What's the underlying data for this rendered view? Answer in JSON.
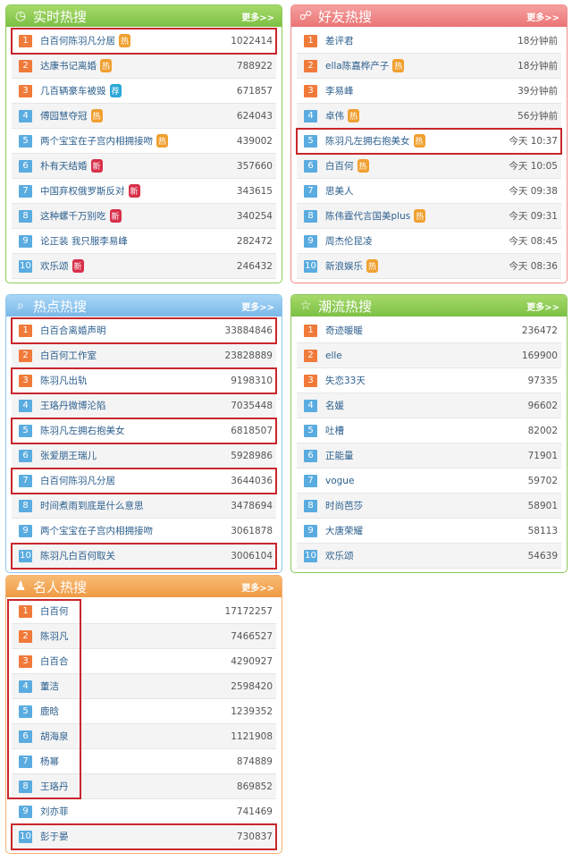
{
  "colors": {
    "hot": "#f0a030",
    "rec": "#2aa8d8",
    "new": "#d8304a",
    "highlight": "#c8262c"
  },
  "more_label": "更多>>",
  "panels": [
    {
      "id": "p1",
      "title": "实时热搜",
      "icon": "clock-icon",
      "theme": "green",
      "rows": [
        {
          "rank": "1",
          "name": "白百何陈羽凡分居",
          "tag": "热",
          "value": "1022414",
          "highlighted": true
        },
        {
          "rank": "2",
          "name": "达康书记离婚",
          "tag": "热",
          "value": "788922"
        },
        {
          "rank": "3",
          "name": "几百辆豪车被毁",
          "tag": "荐",
          "value": "671857"
        },
        {
          "rank": "4",
          "name": "傅园慧夺冠",
          "tag": "热",
          "value": "624043"
        },
        {
          "rank": "5",
          "name": "两个宝宝在子宫内相拥接吻",
          "tag": "热",
          "value": "439002"
        },
        {
          "rank": "6",
          "name": "朴有天结婚",
          "tag": "新",
          "value": "357660"
        },
        {
          "rank": "7",
          "name": "中国弃权俄罗斯反对",
          "tag": "新",
          "value": "343615"
        },
        {
          "rank": "8",
          "name": "这种螺千万别吃",
          "tag": "新",
          "value": "340254"
        },
        {
          "rank": "9",
          "name": "论正装 我只服李易峰",
          "value": "282472"
        },
        {
          "rank": "10",
          "name": "欢乐颂",
          "tag": "新",
          "value": "246432"
        }
      ]
    },
    {
      "id": "p2",
      "title": "好友热搜",
      "icon": "friends-icon",
      "theme": "pink",
      "rows": [
        {
          "rank": "1",
          "name": "差评君",
          "value": "18分钟前"
        },
        {
          "rank": "2",
          "name": "ella陈嘉桦产子",
          "tag": "热",
          "value": "18分钟前"
        },
        {
          "rank": "3",
          "name": "李易峰",
          "value": "39分钟前"
        },
        {
          "rank": "4",
          "name": "卓伟",
          "tag": "热",
          "value": "56分钟前"
        },
        {
          "rank": "5",
          "name": "陈羽凡左拥右抱美女",
          "tag": "热",
          "value": "今天 10:37",
          "highlighted": true
        },
        {
          "rank": "6",
          "name": "白百何",
          "tag": "热",
          "value": "今天 10:05"
        },
        {
          "rank": "7",
          "name": "思美人",
          "value": "今天 09:38"
        },
        {
          "rank": "8",
          "name": "陈伟霆代言国美plus",
          "tag": "热",
          "value": "今天 09:31"
        },
        {
          "rank": "9",
          "name": "周杰伦昆凌",
          "value": "今天 08:45"
        },
        {
          "rank": "10",
          "name": "新浪娱乐",
          "tag": "热",
          "value": "今天 08:36"
        }
      ]
    },
    {
      "id": "p3",
      "title": "热点热搜",
      "icon": "search-icon",
      "theme": "blue",
      "rows": [
        {
          "rank": "1",
          "name": "白百合离婚声明",
          "value": "33884846",
          "highlighted": true
        },
        {
          "rank": "2",
          "name": "白百何工作室",
          "value": "23828889"
        },
        {
          "rank": "3",
          "name": "陈羽凡出轨",
          "value": "9198310",
          "highlighted": true
        },
        {
          "rank": "4",
          "name": "王珞丹微博沦陷",
          "value": "7035448"
        },
        {
          "rank": "5",
          "name": "陈羽凡左拥右抱美女",
          "value": "6818507",
          "highlighted": true
        },
        {
          "rank": "6",
          "name": "张爱朋王瑞儿",
          "value": "5928986"
        },
        {
          "rank": "7",
          "name": "白百何陈羽凡分居",
          "value": "3644036",
          "highlighted": true
        },
        {
          "rank": "8",
          "name": "时间煮雨到底是什么意思",
          "value": "3478694"
        },
        {
          "rank": "9",
          "name": "两个宝宝在子宫内相拥接吻",
          "value": "3061878"
        },
        {
          "rank": "10",
          "name": "陈羽凡白百何取关",
          "value": "3006104",
          "highlighted": true
        }
      ]
    },
    {
      "id": "p4",
      "title": "潮流热搜",
      "icon": "star-icon",
      "theme": "green",
      "rows": [
        {
          "rank": "1",
          "name": "奇迹暖暖",
          "value": "236472"
        },
        {
          "rank": "2",
          "name": "elle",
          "value": "169900"
        },
        {
          "rank": "3",
          "name": "失恋33天",
          "value": "97335"
        },
        {
          "rank": "4",
          "name": "名媛",
          "value": "96602"
        },
        {
          "rank": "5",
          "name": "吐槽",
          "value": "82002"
        },
        {
          "rank": "6",
          "name": "正能量",
          "value": "71901"
        },
        {
          "rank": "7",
          "name": "vogue",
          "value": "59702"
        },
        {
          "rank": "8",
          "name": "时尚芭莎",
          "value": "58901"
        },
        {
          "rank": "9",
          "name": "大唐荣耀",
          "value": "58113"
        },
        {
          "rank": "10",
          "name": "欢乐颂",
          "value": "54639"
        }
      ]
    },
    {
      "id": "p5",
      "title": "名人热搜",
      "icon": "person-icon",
      "theme": "orange",
      "group_highlight_ranks": [
        1,
        8
      ],
      "rows": [
        {
          "rank": "1",
          "name": "白百何",
          "value": "17172257"
        },
        {
          "rank": "2",
          "name": "陈羽凡",
          "value": "7466527"
        },
        {
          "rank": "3",
          "name": "白百合",
          "value": "4290927"
        },
        {
          "rank": "4",
          "name": "董洁",
          "value": "2598420"
        },
        {
          "rank": "5",
          "name": "鹿晗",
          "value": "1239352"
        },
        {
          "rank": "6",
          "name": "胡海泉",
          "value": "1121908"
        },
        {
          "rank": "7",
          "name": "杨幂",
          "value": "874889"
        },
        {
          "rank": "8",
          "name": "王珞丹",
          "value": "869852"
        },
        {
          "rank": "9",
          "name": "刘亦菲",
          "value": "741469"
        },
        {
          "rank": "10",
          "name": "彭于晏",
          "value": "730837",
          "highlighted": true
        }
      ]
    }
  ]
}
